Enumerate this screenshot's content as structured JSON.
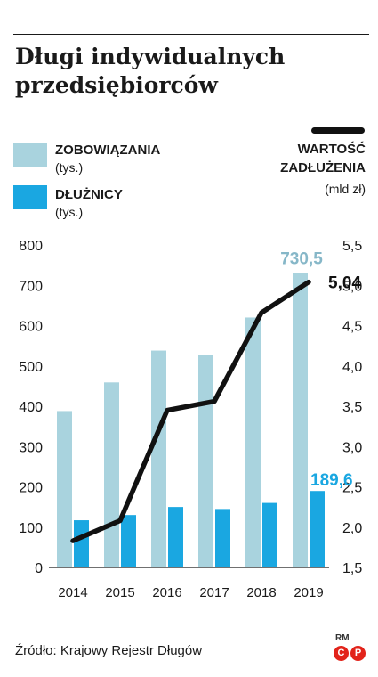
{
  "header": {
    "title": "Długi indywidualnych przedsiębiorców"
  },
  "legend": {
    "zobowiazania_label": "ZOBOWIĄZANIA",
    "zobowiazania_unit": "(tys.)",
    "dluznicy_label": "DŁUŻNICY",
    "dluznicy_unit": "(tys.)",
    "wartosc_label_1": "WARTOŚĆ",
    "wartosc_label_2": "ZADŁUŻENIA",
    "wartosc_unit": "(mld zł)"
  },
  "colors": {
    "zobowiazania": "#a9d3de",
    "dluznicy": "#1aa7e1",
    "line": "#111111",
    "zobowiazania_label": "#86b7c8",
    "dluznicy_label": "#1aa7e1",
    "logo": "#e2231a"
  },
  "chart_data": {
    "type": "bar",
    "categories": [
      "2014",
      "2015",
      "2016",
      "2017",
      "2018",
      "2019"
    ],
    "series": [
      {
        "name": "ZOBOWIĄZANIA",
        "unit": "tys.",
        "axis": "left",
        "values": [
          388,
          459,
          538,
          527,
          620,
          730.5
        ]
      },
      {
        "name": "DŁUŻNICY",
        "unit": "tys.",
        "axis": "left",
        "values": [
          117,
          130,
          150,
          145,
          160,
          189.6
        ]
      },
      {
        "name": "WARTOŚĆ ZADŁUŻENIA",
        "unit": "mld zł",
        "axis": "right",
        "type": "line",
        "values": [
          1.83,
          2.08,
          3.45,
          3.56,
          4.66,
          5.04
        ]
      }
    ],
    "left_axis": {
      "min": 0,
      "max": 800,
      "ticks": [
        "0",
        "100",
        "200",
        "300",
        "400",
        "500",
        "600",
        "700",
        "800"
      ]
    },
    "right_axis": {
      "min": 1.5,
      "max": 5.5,
      "ticks": [
        "1,5",
        "2,0",
        "2,5",
        "3,0",
        "3,5",
        "4,0",
        "4,5",
        "5,0",
        "5,5"
      ]
    },
    "annotations": {
      "zobowiazania_last": "730,5",
      "dluznicy_last": "189,6",
      "line_last": "5,04"
    },
    "grid": false
  },
  "footer": {
    "source": "Źródło: Krajowy Rejestr Długów",
    "rm": "RM",
    "logo_c": "C",
    "logo_p": "P"
  }
}
